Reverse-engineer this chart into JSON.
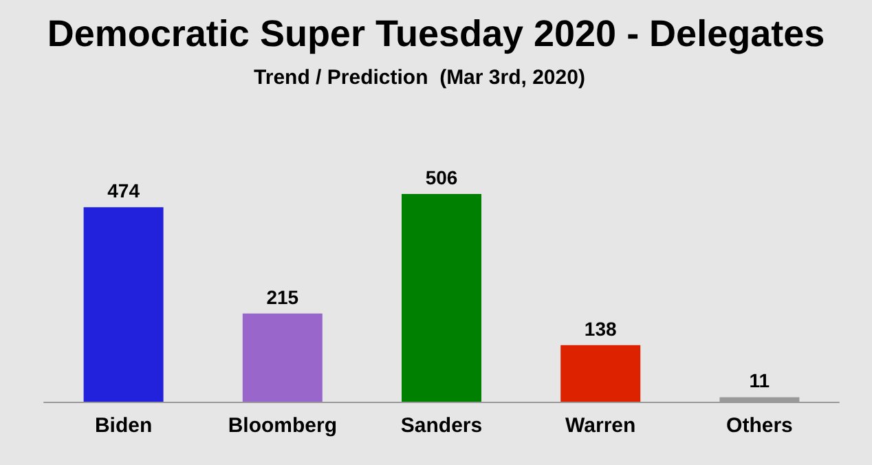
{
  "chart_data": {
    "type": "bar",
    "title": "Democratic Super Tuesday 2020 - Delegates",
    "subtitle": "Trend / Prediction  (Mar 3rd, 2020)",
    "categories": [
      "Biden",
      "Bloomberg",
      "Sanders",
      "Warren",
      "Others"
    ],
    "values": [
      474,
      215,
      506,
      138,
      11
    ],
    "colors": [
      "#2222dd",
      "#9966cc",
      "#008000",
      "#dd2200",
      "#999999"
    ],
    "data_labels": true,
    "grid": false
  }
}
